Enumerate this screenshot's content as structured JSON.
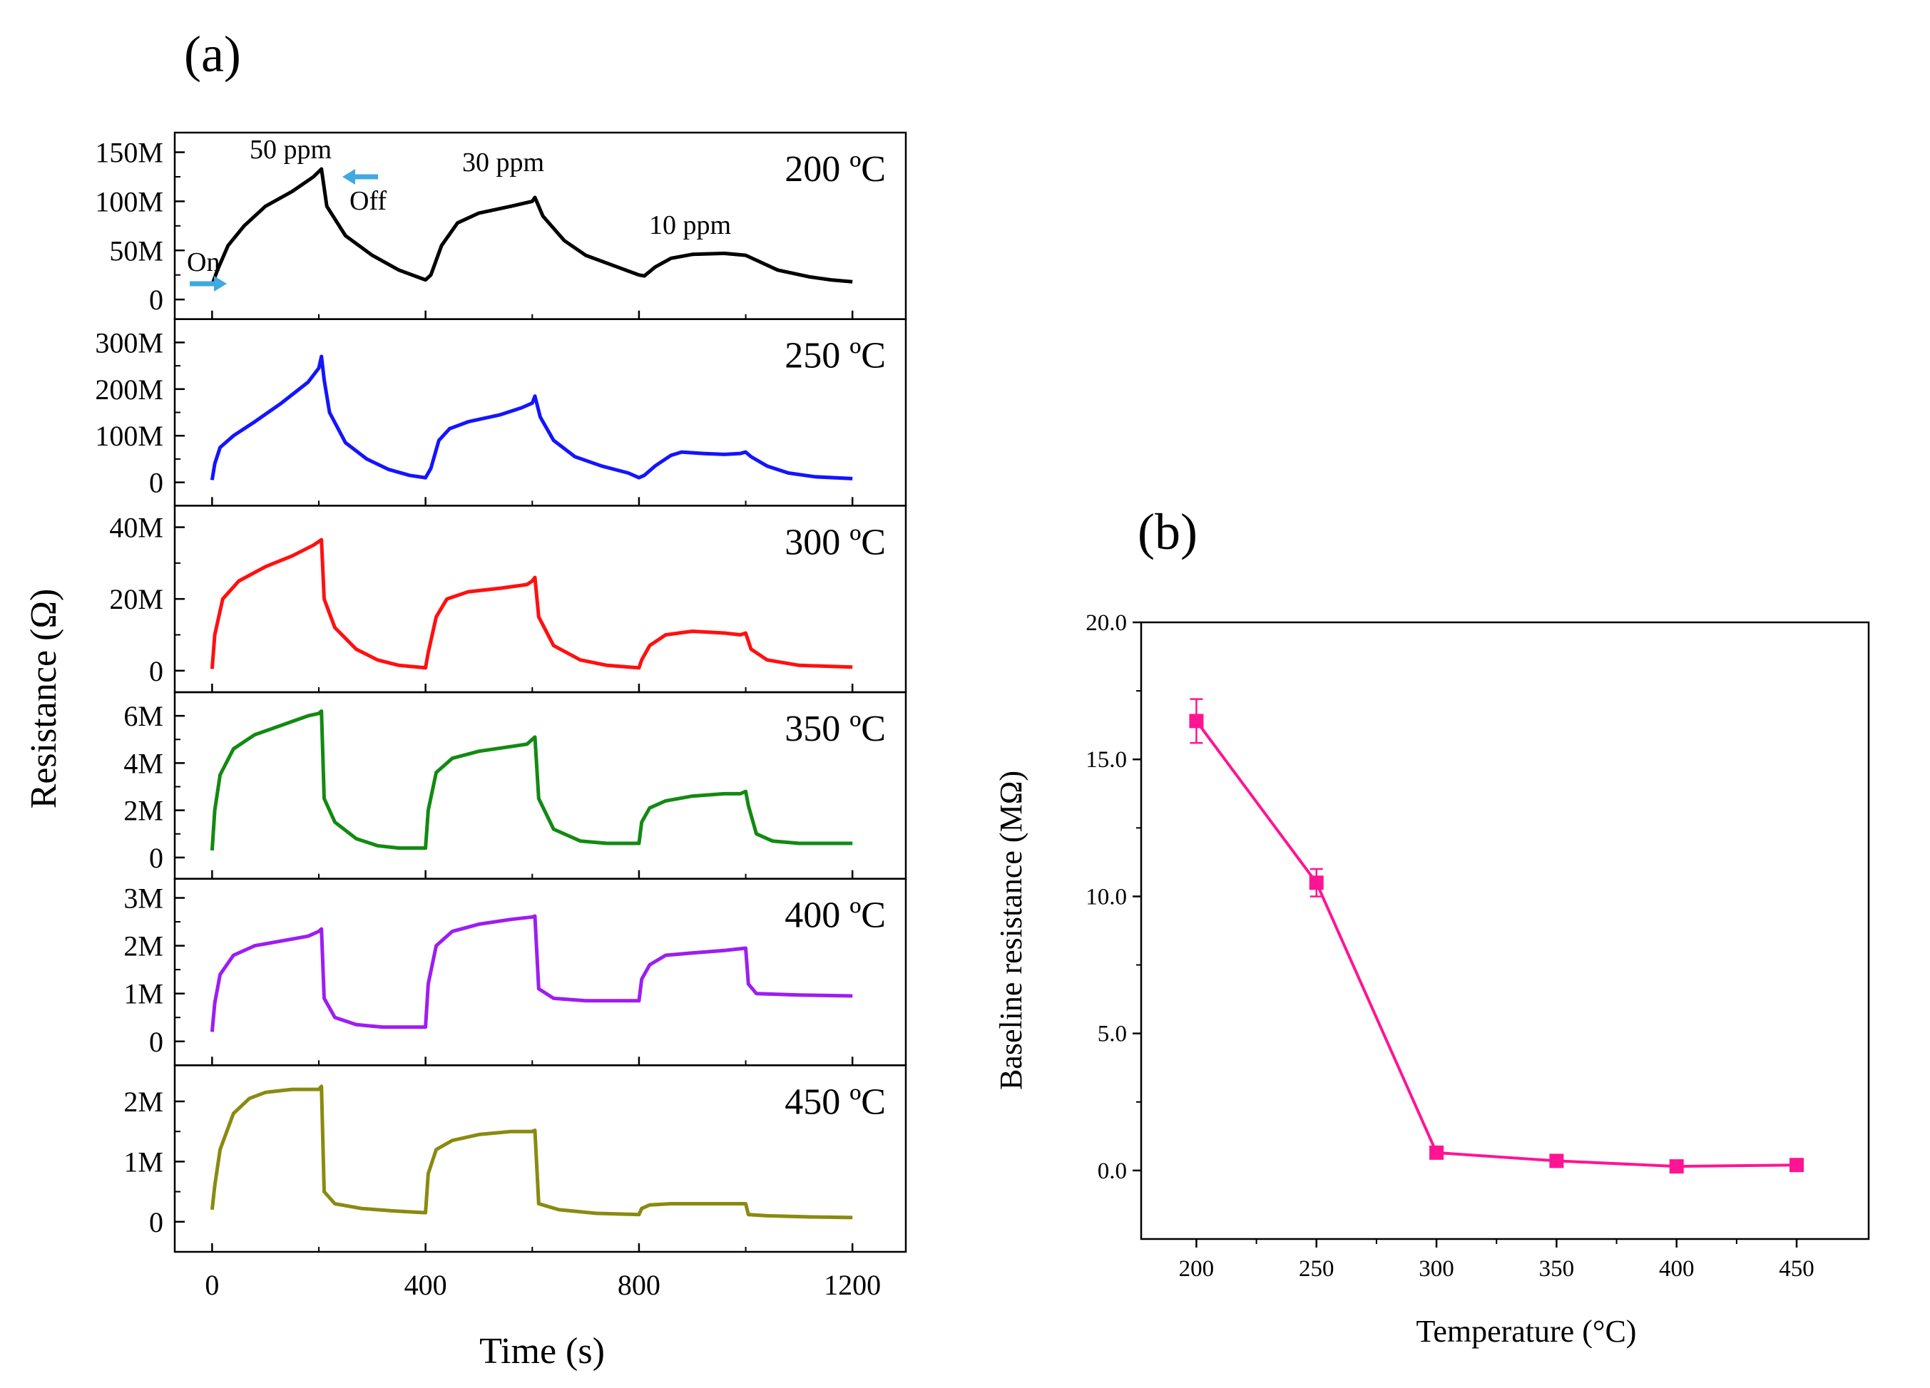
{
  "chart_data": [
    {
      "panel_label": "(a)",
      "type": "line",
      "xlabel": "Time (s)",
      "ylabel": "Resistance (Ω)",
      "xlim": [
        -70,
        1300
      ],
      "x_ticks": [
        "0",
        "400",
        "800",
        "1200"
      ],
      "x_tick_values": [
        0,
        400,
        800,
        1200
      ],
      "gas_annotations": [
        "50 ppm",
        "30 ppm",
        "10 ppm"
      ],
      "event_annotations": [
        "On",
        "Off"
      ],
      "arrow_color": "#3fa9e0",
      "series": [
        {
          "name": "200 °C",
          "label": "200 ºC",
          "color": "#000000",
          "ylim": [
            -20,
            170
          ],
          "y_ticks": [
            "0",
            "50M",
            "100M",
            "150M"
          ],
          "y_tick_values": [
            0,
            50,
            100,
            150
          ],
          "unit": "MΩ",
          "points": [
            [
              0,
              15
            ],
            [
              10,
              30
            ],
            [
              30,
              55
            ],
            [
              60,
              75
            ],
            [
              100,
              95
            ],
            [
              150,
              110
            ],
            [
              190,
              125
            ],
            [
              205,
              133
            ],
            [
              215,
              95
            ],
            [
              250,
              65
            ],
            [
              300,
              45
            ],
            [
              350,
              30
            ],
            [
              400,
              20
            ],
            [
              410,
              25
            ],
            [
              430,
              55
            ],
            [
              460,
              78
            ],
            [
              500,
              88
            ],
            [
              560,
              95
            ],
            [
              600,
              100
            ],
            [
              605,
              104
            ],
            [
              620,
              85
            ],
            [
              660,
              60
            ],
            [
              700,
              45
            ],
            [
              760,
              33
            ],
            [
              800,
              25
            ],
            [
              810,
              24
            ],
            [
              830,
              33
            ],
            [
              860,
              42
            ],
            [
              900,
              46
            ],
            [
              960,
              47
            ],
            [
              1000,
              45
            ],
            [
              1020,
              40
            ],
            [
              1060,
              30
            ],
            [
              1120,
              23
            ],
            [
              1160,
              20
            ],
            [
              1200,
              18
            ]
          ]
        },
        {
          "name": "250 °C",
          "label": "250 ºC",
          "color": "#1414ff",
          "ylim": [
            -50,
            350
          ],
          "y_ticks": [
            "0",
            "100M",
            "200M",
            "300M"
          ],
          "y_tick_values": [
            0,
            100,
            200,
            300
          ],
          "unit": "MΩ",
          "points": [
            [
              0,
              5
            ],
            [
              5,
              40
            ],
            [
              15,
              75
            ],
            [
              40,
              100
            ],
            [
              80,
              130
            ],
            [
              130,
              170
            ],
            [
              180,
              215
            ],
            [
              200,
              245
            ],
            [
              205,
              270
            ],
            [
              210,
              220
            ],
            [
              220,
              150
            ],
            [
              250,
              85
            ],
            [
              290,
              50
            ],
            [
              330,
              28
            ],
            [
              370,
              15
            ],
            [
              400,
              10
            ],
            [
              410,
              30
            ],
            [
              425,
              90
            ],
            [
              445,
              115
            ],
            [
              480,
              130
            ],
            [
              540,
              145
            ],
            [
              580,
              160
            ],
            [
              600,
              170
            ],
            [
              605,
              185
            ],
            [
              615,
              140
            ],
            [
              640,
              90
            ],
            [
              680,
              55
            ],
            [
              730,
              35
            ],
            [
              780,
              20
            ],
            [
              800,
              10
            ],
            [
              810,
              15
            ],
            [
              830,
              35
            ],
            [
              860,
              58
            ],
            [
              880,
              65
            ],
            [
              920,
              62
            ],
            [
              960,
              60
            ],
            [
              990,
              62
            ],
            [
              1000,
              65
            ],
            [
              1010,
              55
            ],
            [
              1040,
              35
            ],
            [
              1080,
              20
            ],
            [
              1130,
              12
            ],
            [
              1200,
              8
            ]
          ]
        },
        {
          "name": "300 °C",
          "label": "300 ºC",
          "color": "#ff1010",
          "ylim": [
            -6,
            46
          ],
          "y_ticks": [
            "0",
            "20M",
            "40M"
          ],
          "y_tick_values": [
            0,
            20,
            40
          ],
          "unit": "MΩ",
          "points": [
            [
              0,
              0.5
            ],
            [
              5,
              10
            ],
            [
              20,
              20
            ],
            [
              50,
              25
            ],
            [
              100,
              29
            ],
            [
              150,
              32
            ],
            [
              190,
              35
            ],
            [
              200,
              36
            ],
            [
              205,
              36.5
            ],
            [
              210,
              20
            ],
            [
              230,
              12
            ],
            [
              270,
              6
            ],
            [
              310,
              3
            ],
            [
              350,
              1.5
            ],
            [
              400,
              0.8
            ],
            [
              405,
              5
            ],
            [
              420,
              15
            ],
            [
              440,
              20
            ],
            [
              480,
              22
            ],
            [
              540,
              23
            ],
            [
              590,
              24
            ],
            [
              600,
              25
            ],
            [
              605,
              26
            ],
            [
              612,
              15
            ],
            [
              640,
              7
            ],
            [
              690,
              3
            ],
            [
              740,
              1.5
            ],
            [
              800,
              0.8
            ],
            [
              805,
              3
            ],
            [
              820,
              7
            ],
            [
              850,
              10
            ],
            [
              900,
              11
            ],
            [
              960,
              10.5
            ],
            [
              990,
              10
            ],
            [
              1000,
              10.5
            ],
            [
              1010,
              6
            ],
            [
              1040,
              3
            ],
            [
              1100,
              1.5
            ],
            [
              1200,
              1
            ]
          ]
        },
        {
          "name": "350 °C",
          "label": "350 ºC",
          "color": "#128a12",
          "ylim": [
            -0.9,
            7
          ],
          "y_ticks": [
            "0",
            "2M",
            "4M",
            "6M"
          ],
          "y_tick_values": [
            0,
            2,
            4,
            6
          ],
          "unit": "MΩ",
          "points": [
            [
              0,
              0.3
            ],
            [
              5,
              2
            ],
            [
              15,
              3.5
            ],
            [
              40,
              4.6
            ],
            [
              80,
              5.2
            ],
            [
              130,
              5.6
            ],
            [
              180,
              6
            ],
            [
              200,
              6.1
            ],
            [
              205,
              6.2
            ],
            [
              210,
              2.5
            ],
            [
              230,
              1.5
            ],
            [
              270,
              0.8
            ],
            [
              310,
              0.5
            ],
            [
              350,
              0.4
            ],
            [
              400,
              0.4
            ],
            [
              405,
              2
            ],
            [
              420,
              3.6
            ],
            [
              450,
              4.2
            ],
            [
              500,
              4.5
            ],
            [
              560,
              4.7
            ],
            [
              590,
              4.8
            ],
            [
              600,
              5.0
            ],
            [
              605,
              5.1
            ],
            [
              612,
              2.5
            ],
            [
              640,
              1.2
            ],
            [
              690,
              0.7
            ],
            [
              740,
              0.6
            ],
            [
              800,
              0.6
            ],
            [
              805,
              1.5
            ],
            [
              820,
              2.1
            ],
            [
              850,
              2.4
            ],
            [
              900,
              2.6
            ],
            [
              960,
              2.7
            ],
            [
              990,
              2.7
            ],
            [
              1000,
              2.8
            ],
            [
              1005,
              2.2
            ],
            [
              1020,
              1.0
            ],
            [
              1050,
              0.7
            ],
            [
              1100,
              0.6
            ],
            [
              1200,
              0.6
            ]
          ]
        },
        {
          "name": "400 °C",
          "label": "400 ºC",
          "color": "#9d1df2",
          "ylim": [
            -0.5,
            3.4
          ],
          "y_ticks": [
            "0",
            "1M",
            "2M",
            "3M"
          ],
          "y_tick_values": [
            0,
            1,
            2,
            3
          ],
          "unit": "MΩ",
          "points": [
            [
              0,
              0.2
            ],
            [
              5,
              0.8
            ],
            [
              15,
              1.4
            ],
            [
              40,
              1.8
            ],
            [
              80,
              2.0
            ],
            [
              130,
              2.1
            ],
            [
              180,
              2.2
            ],
            [
              200,
              2.3
            ],
            [
              205,
              2.35
            ],
            [
              210,
              0.9
            ],
            [
              230,
              0.5
            ],
            [
              270,
              0.35
            ],
            [
              320,
              0.3
            ],
            [
              400,
              0.3
            ],
            [
              405,
              1.2
            ],
            [
              420,
              2.0
            ],
            [
              450,
              2.3
            ],
            [
              500,
              2.45
            ],
            [
              560,
              2.55
            ],
            [
              600,
              2.6
            ],
            [
              605,
              2.62
            ],
            [
              612,
              1.1
            ],
            [
              640,
              0.9
            ],
            [
              700,
              0.85
            ],
            [
              800,
              0.85
            ],
            [
              805,
              1.3
            ],
            [
              820,
              1.6
            ],
            [
              850,
              1.8
            ],
            [
              900,
              1.85
            ],
            [
              960,
              1.9
            ],
            [
              1000,
              1.95
            ],
            [
              1005,
              1.2
            ],
            [
              1020,
              1.0
            ],
            [
              1100,
              0.97
            ],
            [
              1200,
              0.95
            ]
          ]
        },
        {
          "name": "450 °C",
          "label": "450 ºC",
          "color": "#8a8a10",
          "ylim": [
            -0.5,
            2.6
          ],
          "y_ticks": [
            "0",
            "1M",
            "2M"
          ],
          "y_tick_values": [
            0,
            1,
            2
          ],
          "unit": "MΩ",
          "points": [
            [
              0,
              0.2
            ],
            [
              5,
              0.6
            ],
            [
              15,
              1.2
            ],
            [
              40,
              1.8
            ],
            [
              70,
              2.05
            ],
            [
              100,
              2.15
            ],
            [
              150,
              2.2
            ],
            [
              200,
              2.2
            ],
            [
              205,
              2.25
            ],
            [
              210,
              0.5
            ],
            [
              230,
              0.3
            ],
            [
              280,
              0.22
            ],
            [
              340,
              0.18
            ],
            [
              400,
              0.15
            ],
            [
              405,
              0.8
            ],
            [
              420,
              1.2
            ],
            [
              450,
              1.35
            ],
            [
              500,
              1.45
            ],
            [
              560,
              1.5
            ],
            [
              600,
              1.5
            ],
            [
              605,
              1.52
            ],
            [
              612,
              0.3
            ],
            [
              650,
              0.2
            ],
            [
              720,
              0.14
            ],
            [
              800,
              0.12
            ],
            [
              805,
              0.22
            ],
            [
              820,
              0.28
            ],
            [
              860,
              0.3
            ],
            [
              920,
              0.3
            ],
            [
              990,
              0.3
            ],
            [
              1000,
              0.3
            ],
            [
              1005,
              0.12
            ],
            [
              1040,
              0.1
            ],
            [
              1120,
              0.08
            ],
            [
              1200,
              0.07
            ]
          ]
        }
      ]
    },
    {
      "panel_label": "(b)",
      "type": "line",
      "title": "",
      "xlabel": "Temperature (°C)",
      "ylabel": "Baseline resistance (MΩ)",
      "xlim": [
        177,
        480
      ],
      "ylim": [
        -2.5,
        20
      ],
      "x_ticks": [
        "200",
        "250",
        "300",
        "350",
        "400",
        "450"
      ],
      "x_tick_values": [
        200,
        250,
        300,
        350,
        400,
        450
      ],
      "y_ticks": [
        "0.0",
        "5.0",
        "10.0",
        "15.0",
        "20.0"
      ],
      "y_tick_values": [
        0,
        5,
        10,
        15,
        20
      ],
      "color": "#ff1493",
      "marker": "square",
      "x": [
        200,
        250,
        300,
        350,
        400,
        450
      ],
      "y": [
        16.4,
        10.5,
        0.65,
        0.35,
        0.15,
        0.2
      ],
      "error": [
        0.8,
        0.5,
        0.1,
        0.08,
        0.05,
        0.05
      ]
    }
  ]
}
